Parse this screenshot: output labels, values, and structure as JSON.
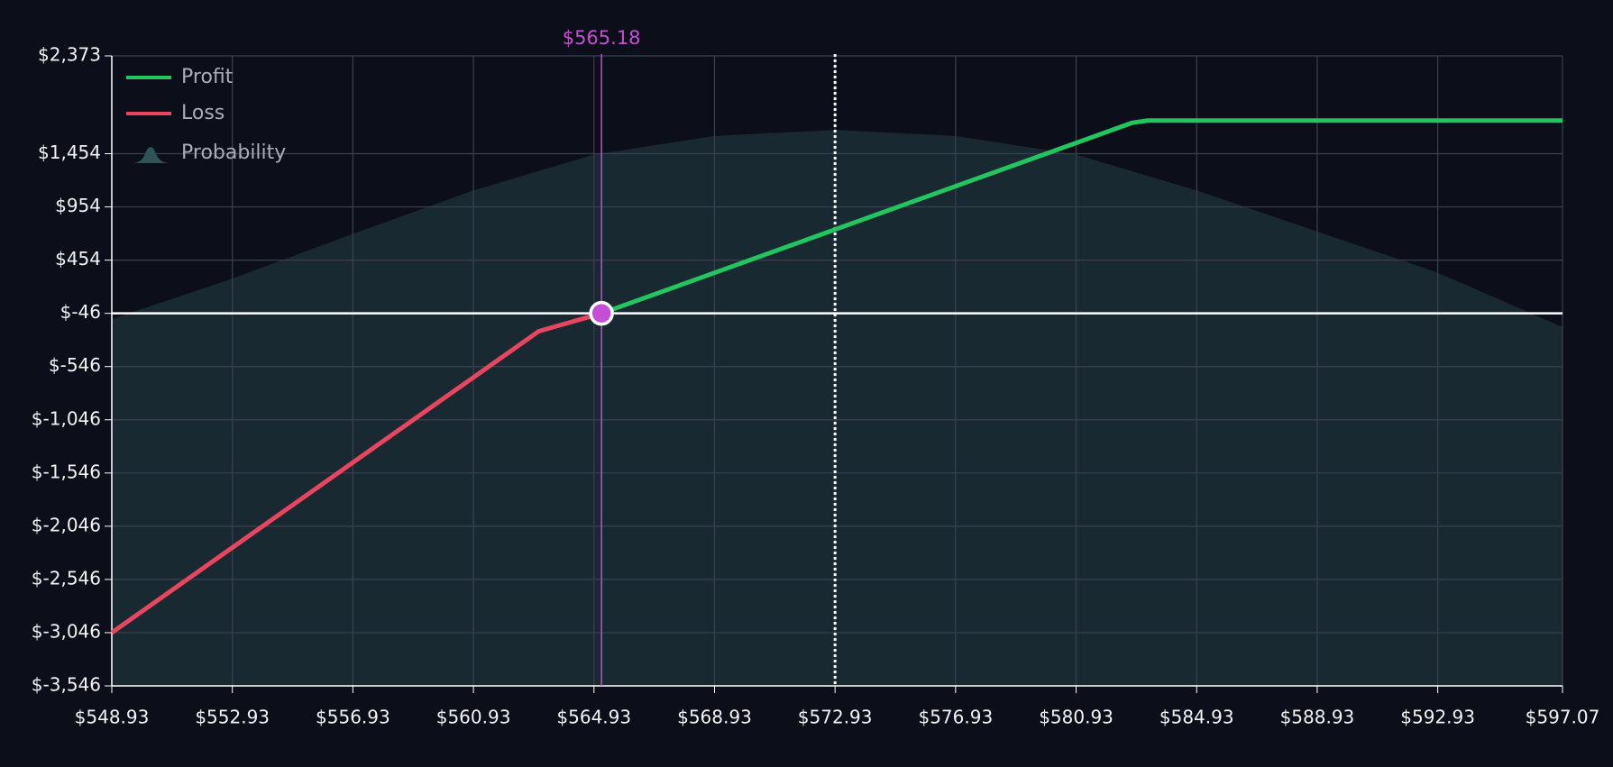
{
  "chart_data": {
    "type": "line",
    "series": [
      {
        "name": "Profit",
        "color": "#22c55e",
        "x": [
          565.18,
          582.8,
          583.3,
          597.07
        ],
        "values": [
          -46,
          1745,
          1765,
          1765
        ]
      },
      {
        "name": "Loss",
        "color": "#e8455f",
        "x": [
          548.93,
          563.1,
          565.18
        ],
        "values": [
          -3046,
          -214,
          -46
        ]
      }
    ],
    "probability": {
      "name": "Probability",
      "color": "#2a4a50",
      "x": [
        548.93,
        552.93,
        556.93,
        560.93,
        564.93,
        568.93,
        572.93,
        576.93,
        580.93,
        584.93,
        588.93,
        592.93,
        597.07
      ],
      "values": [
        -100,
        280,
        700,
        1108,
        1446,
        1620,
        1678,
        1620,
        1446,
        1108,
        723,
        336,
        -175
      ]
    },
    "breakeven": {
      "value": 565.18,
      "label": "$565.18"
    },
    "reference_y": -46,
    "current_price": 572.93,
    "xlim": [
      548.93,
      597.07
    ],
    "ylim": [
      -3546,
      2373
    ],
    "xticks": [
      {
        "value": 548.93,
        "label": "$548.93"
      },
      {
        "value": 552.93,
        "label": "$552.93"
      },
      {
        "value": 556.93,
        "label": "$556.93"
      },
      {
        "value": 560.93,
        "label": "$560.93"
      },
      {
        "value": 564.93,
        "label": "$564.93"
      },
      {
        "value": 568.93,
        "label": "$568.93"
      },
      {
        "value": 572.93,
        "label": "$572.93"
      },
      {
        "value": 576.93,
        "label": "$576.93"
      },
      {
        "value": 580.93,
        "label": "$580.93"
      },
      {
        "value": 584.93,
        "label": "$584.93"
      },
      {
        "value": 588.93,
        "label": "$588.93"
      },
      {
        "value": 592.93,
        "label": "$592.93"
      },
      {
        "value": 597.07,
        "label": "$597.07"
      }
    ],
    "yticks": [
      {
        "value": 2373,
        "label": "$2,373"
      },
      {
        "value": 1454,
        "label": "$1,454"
      },
      {
        "value": 954,
        "label": "$954"
      },
      {
        "value": 454,
        "label": "$454"
      },
      {
        "value": -46,
        "label": "$-46"
      },
      {
        "value": -546,
        "label": "$-546"
      },
      {
        "value": -1046,
        "label": "$-1,046"
      },
      {
        "value": -1546,
        "label": "$-1,546"
      },
      {
        "value": -2046,
        "label": "$-2,046"
      },
      {
        "value": -2546,
        "label": "$-2,546"
      },
      {
        "value": -3046,
        "label": "$-3,046"
      },
      {
        "value": -3546,
        "label": "$-3,546"
      }
    ],
    "grid": true
  }
}
